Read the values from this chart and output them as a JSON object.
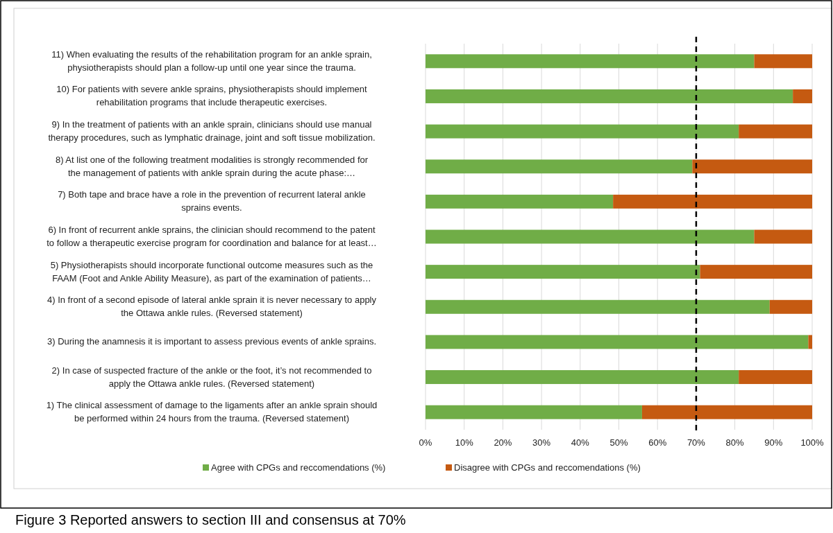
{
  "chart_data": {
    "type": "bar",
    "orientation": "horizontal",
    "stacked": true,
    "categories": [
      "11) When evaluating the results of the rehabilitation program for an ankle sprain,\nphysiotherapists should plan a follow-up until one year since the trauma.",
      "10) For patients with severe ankle sprains, physiotherapists should implement\nrehabilitation programs that include therapeutic exercises.",
      "9) In the treatment of patients with an ankle sprain, clinicians should use manual\ntherapy procedures, such as lymphatic drainage, joint and soft tissue mobilization.",
      "8) At list one of the following treatment modalities is strongly recommended for\nthe management of patients with ankle sprain during the acute phase:…",
      "7) Both tape and brace have a role in the prevention of recurrent lateral ankle\nsprains events.",
      "6) In front of recurrent ankle sprains, the clinician should recommend to the patent\nto follow a therapeutic exercise program for coordination and balance for at least…",
      "5) Physiotherapists should incorporate functional outcome measures such as the\nFAAM (Foot and Ankle Ability Measure), as part of the examination of patients…",
      "4) In front of a second episode of lateral ankle sprain it is never necessary to apply\nthe Ottawa ankle rules. (Reversed statement)",
      "3) During the anamnesis it is important to assess previous events of ankle sprains.",
      "2) In case of suspected fracture of the ankle or the foot, it’s not recommended to\napply the Ottawa ankle rules. (Reversed statement)",
      "1) The clinical assessment of damage to the ligaments after an ankle sprain should\nbe performed within 24 hours from the trauma. (Reversed statement)"
    ],
    "series": [
      {
        "name": "Agree with CPGs and reccomendations (%)",
        "color": "#70ad47",
        "values": [
          85,
          95,
          81,
          69,
          48.5,
          85,
          71,
          89,
          99,
          81,
          56
        ]
      },
      {
        "name": "Disagree with CPGs  and reccomendations (%)",
        "color": "#c55a11",
        "values": [
          15,
          5,
          19,
          31,
          51.5,
          15,
          29,
          11,
          1,
          19,
          44
        ]
      }
    ],
    "xlim": [
      0,
      100
    ],
    "xticks": [
      {
        "value": 0,
        "label": "0%"
      },
      {
        "value": 10,
        "label": "10%"
      },
      {
        "value": 20,
        "label": "20%"
      },
      {
        "value": 30,
        "label": "30%"
      },
      {
        "value": 40,
        "label": "40%"
      },
      {
        "value": 50,
        "label": "50%"
      },
      {
        "value": 60,
        "label": "60%"
      },
      {
        "value": 70,
        "label": "70%"
      },
      {
        "value": 80,
        "label": "80%"
      },
      {
        "value": 90,
        "label": "90%"
      },
      {
        "value": 100,
        "label": "100%"
      }
    ],
    "grid": "x",
    "legend": "bottom",
    "ref_lines": [
      {
        "axis": "x",
        "value": 70,
        "line_style": "dashed",
        "color": "#000000"
      }
    ],
    "annotations": [
      "Figure 3 Reported answers to section III and consensus at 70%"
    ]
  }
}
